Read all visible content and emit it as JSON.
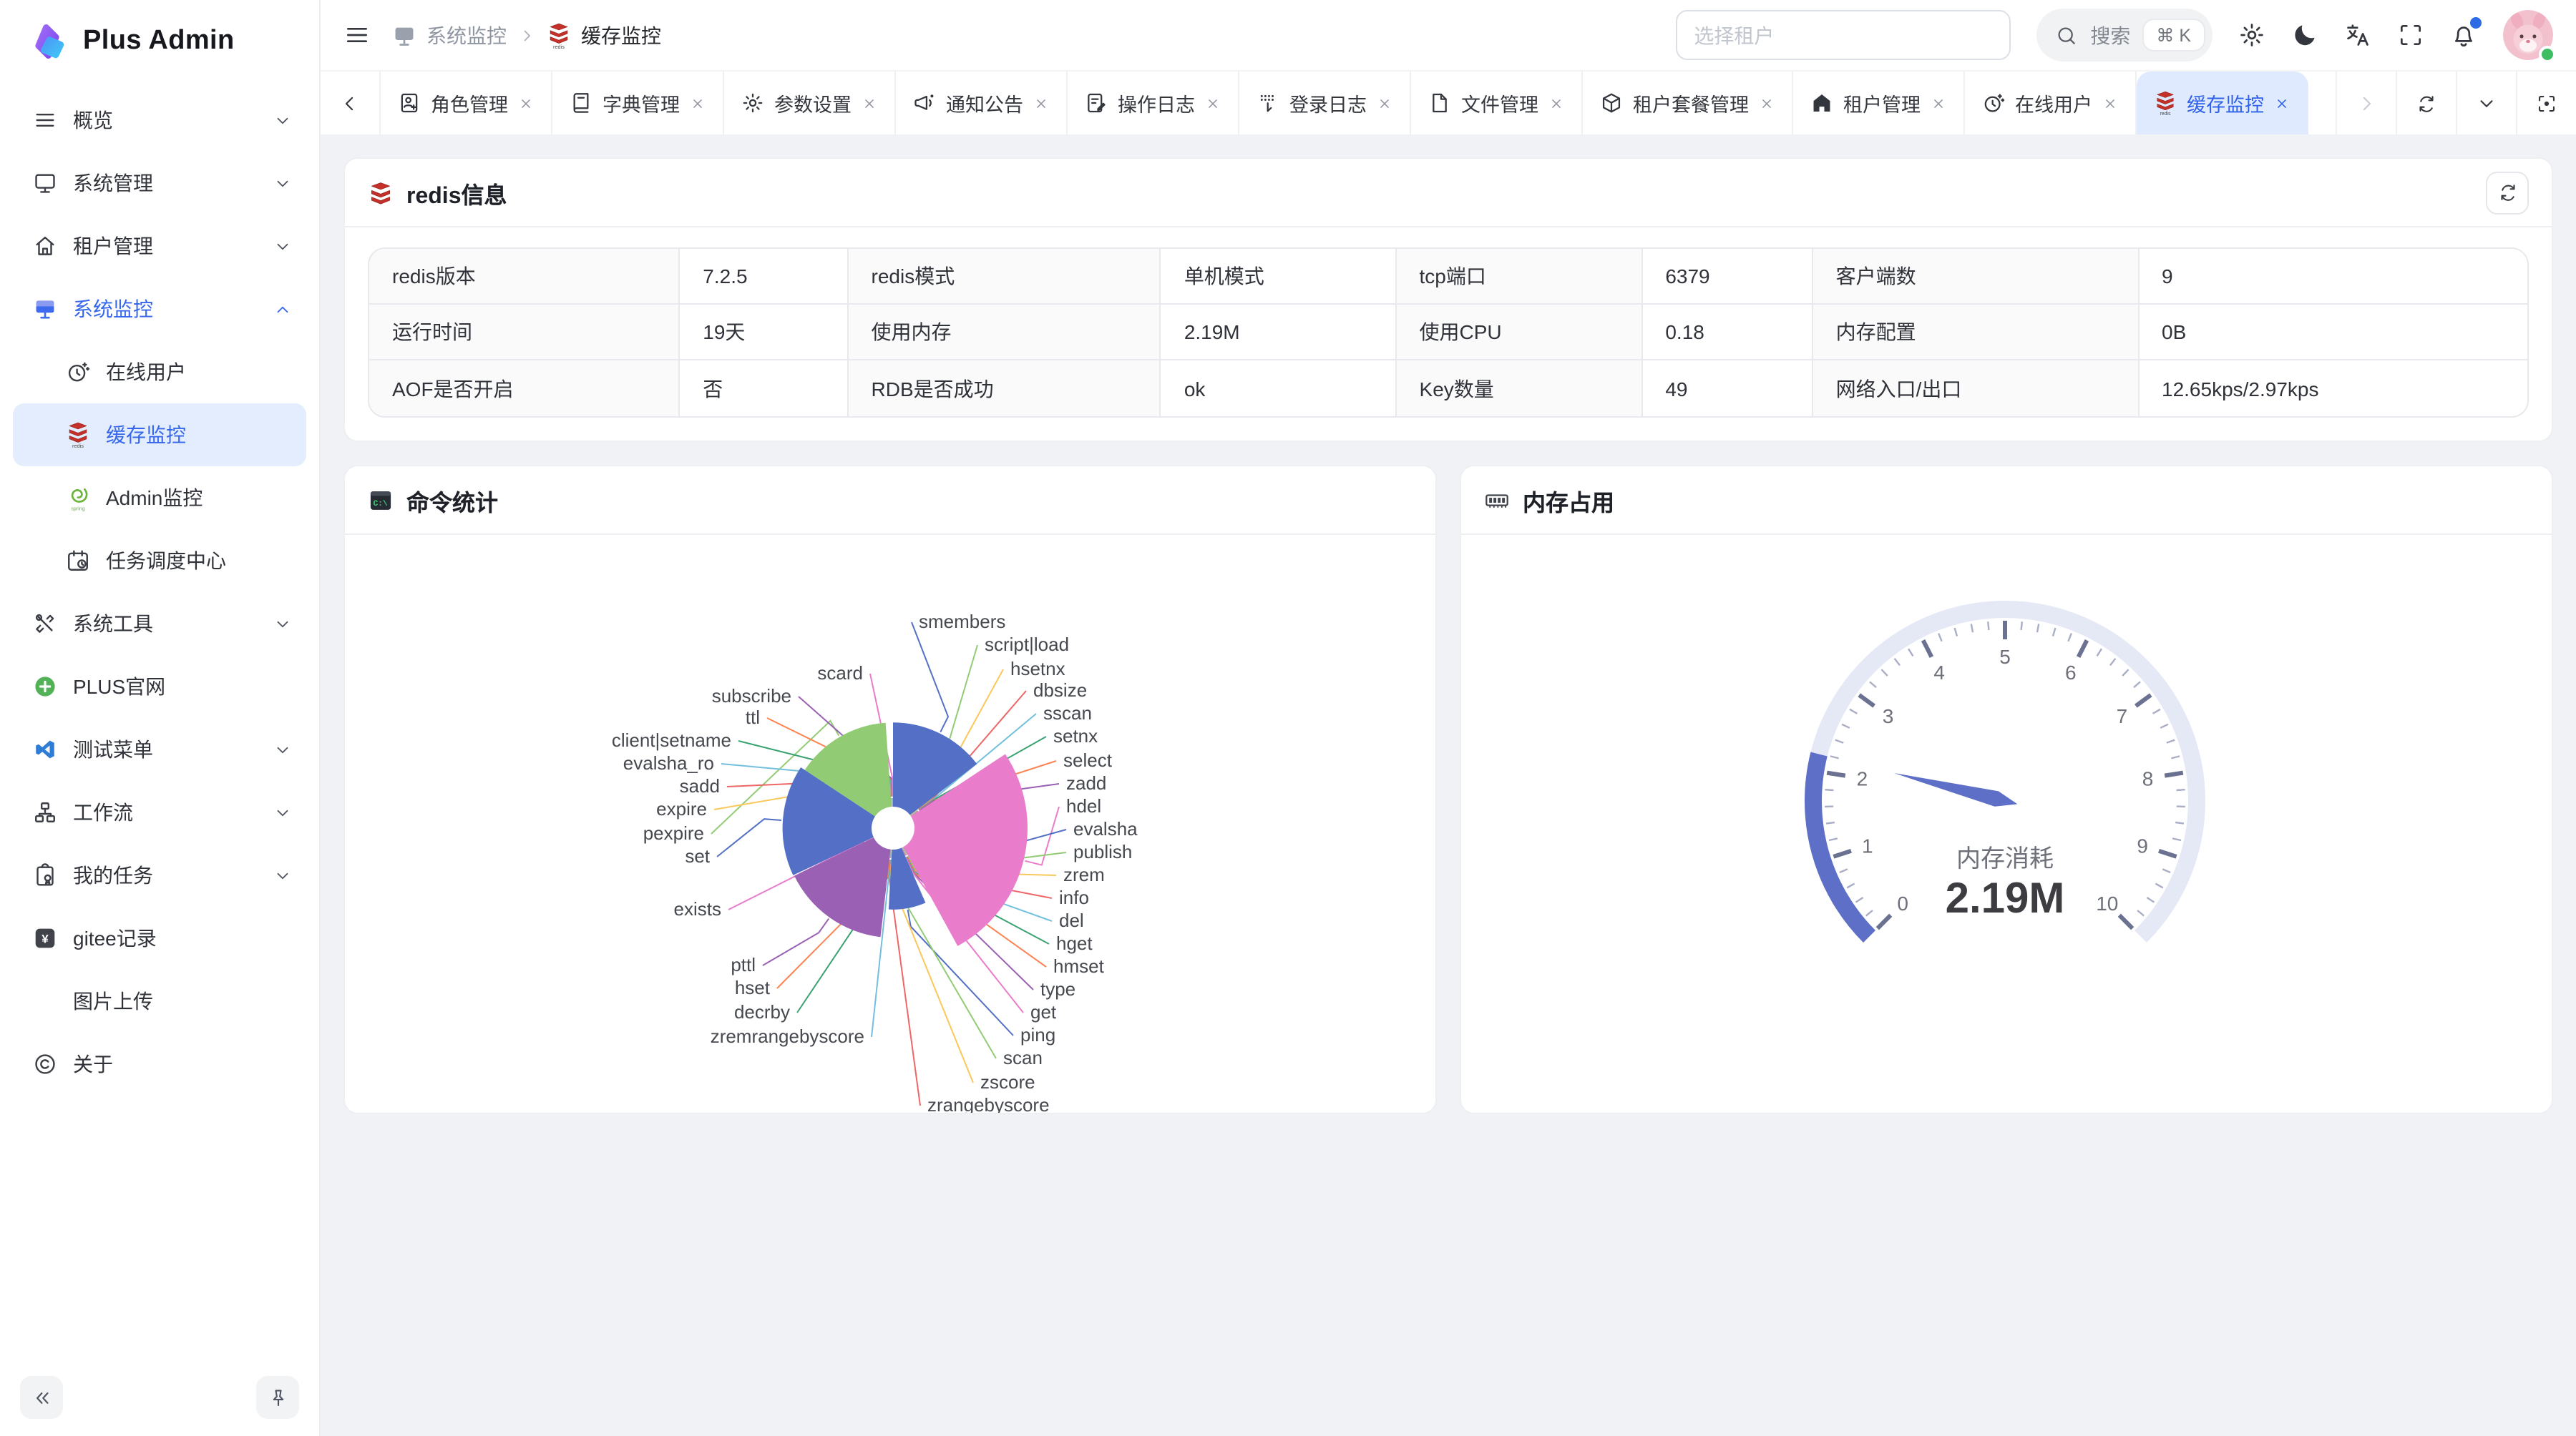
{
  "app": {
    "name": "Plus Admin"
  },
  "colors": {
    "primary": "#3566EB",
    "sidebar_active_bg": "#E3EDFD",
    "active_tab_bg": "#E0EAFE",
    "content_bg": "#F0F2F5",
    "redis_red": "#C6302B",
    "notification_dot": "#2B6BE4",
    "online_status": "#3DBE62"
  },
  "sidebar": {
    "items": [
      {
        "key": "overview",
        "label": "概览",
        "icon": "menu-lines",
        "chevron": "down"
      },
      {
        "key": "system-mgmt",
        "label": "系统管理",
        "icon": "monitor",
        "chevron": "down"
      },
      {
        "key": "tenant-mgmt",
        "label": "租户管理",
        "icon": "home",
        "chevron": "down"
      },
      {
        "key": "system-monitor",
        "label": "系统监控",
        "icon": "monitor-active",
        "chevron": "up",
        "active": true
      },
      {
        "key": "online-users",
        "label": "在线用户",
        "icon": "clock",
        "child": true
      },
      {
        "key": "cache-monitor",
        "label": "缓存监控",
        "icon": "redis",
        "child": true,
        "selected": true
      },
      {
        "key": "admin-monitor",
        "label": "Admin监控",
        "icon": "spring",
        "child": true
      },
      {
        "key": "task-scheduler",
        "label": "任务调度中心",
        "icon": "calendar",
        "child": true
      },
      {
        "key": "system-tools",
        "label": "系统工具",
        "icon": "tools",
        "chevron": "down"
      },
      {
        "key": "plus-site",
        "label": "PLUS官网",
        "icon": "plus-circle"
      },
      {
        "key": "test-menu",
        "label": "测试菜单",
        "icon": "vscode",
        "chevron": "down"
      },
      {
        "key": "workflow",
        "label": "工作流",
        "icon": "workflow",
        "chevron": "down"
      },
      {
        "key": "my-tasks",
        "label": "我的任务",
        "icon": "clipboard",
        "chevron": "down"
      },
      {
        "key": "gitee-log",
        "label": "gitee记录",
        "icon": "gitee"
      },
      {
        "key": "image-upload",
        "label": "图片上传",
        "icon": "none"
      },
      {
        "key": "about",
        "label": "关于",
        "icon": "copyright"
      }
    ]
  },
  "topbar": {
    "breadcrumb": {
      "root": {
        "label": "系统监控",
        "icon": "monitor-gray"
      },
      "current": {
        "label": "缓存监控",
        "icon": "redis"
      }
    },
    "tenant_select": {
      "placeholder": "选择租户"
    },
    "search": {
      "label": "搜索",
      "shortcut": "⌘ K"
    },
    "action_icons": {
      "settings": "gear",
      "theme": "moon",
      "locale": "translate",
      "fullscreen": "fullscreen",
      "notifications": "bell"
    }
  },
  "tabbar": {
    "tabs": [
      {
        "key": "role-mgmt",
        "label": "角色管理",
        "icon": "role"
      },
      {
        "key": "dict-mgmt",
        "label": "字典管理",
        "icon": "book"
      },
      {
        "key": "param-settings",
        "label": "参数设置",
        "icon": "gear"
      },
      {
        "key": "notice",
        "label": "通知公告",
        "icon": "megaphone"
      },
      {
        "key": "op-log",
        "label": "操作日志",
        "icon": "doc"
      },
      {
        "key": "login-log",
        "label": "登录日志",
        "icon": "login-log"
      },
      {
        "key": "file-mgmt",
        "label": "文件管理",
        "icon": "file"
      },
      {
        "key": "tenant-package-mgmt",
        "label": "租户套餐管理",
        "icon": "box"
      },
      {
        "key": "tenant-mgmt",
        "label": "租户管理",
        "icon": "building"
      },
      {
        "key": "online-users",
        "label": "在线用户",
        "icon": "clock"
      },
      {
        "key": "cache-monitor",
        "label": "缓存监控",
        "icon": "redis",
        "active": true
      }
    ]
  },
  "redis_info": {
    "title": "redis信息",
    "icon": "redis-plain",
    "rows": [
      [
        {
          "label": "redis版本",
          "value": "7.2.5"
        },
        {
          "label": "redis模式",
          "value": "单机模式"
        },
        {
          "label": "tcp端口",
          "value": "6379"
        },
        {
          "label": "客户端数",
          "value": "9"
        }
      ],
      [
        {
          "label": "运行时间",
          "value": "19天"
        },
        {
          "label": "使用内存",
          "value": "2.19M"
        },
        {
          "label": "使用CPU",
          "value": "0.18"
        },
        {
          "label": "内存配置",
          "value": "0B"
        }
      ],
      [
        {
          "label": "AOF是否开启",
          "value": "否"
        },
        {
          "label": "RDB是否成功",
          "value": "ok"
        },
        {
          "label": "Key数量",
          "value": "49"
        },
        {
          "label": "网络入口/出口",
          "value": "12.65kps/2.97kps"
        }
      ]
    ]
  },
  "chart_data": [
    {
      "id": "command-usage",
      "type": "pie",
      "variant": "rose",
      "title": "命令统计",
      "icon": "terminal",
      "legend_position": "none",
      "note": "values are estimated percentages read from slice angles",
      "slices": [
        {
          "name": "smembers",
          "value": 14.6,
          "color": "#5470C6"
        },
        {
          "name": "script|load",
          "value": 0.16,
          "color": "#91CC75"
        },
        {
          "name": "hsetnx",
          "value": 0.16,
          "color": "#FAC858"
        },
        {
          "name": "dbsize",
          "value": 0.16,
          "color": "#EE6666"
        },
        {
          "name": "sscan",
          "value": 0.16,
          "color": "#73C0DE"
        },
        {
          "name": "setnx",
          "value": 0.16,
          "color": "#3BA272"
        },
        {
          "name": "select",
          "value": 0.16,
          "color": "#FC8452"
        },
        {
          "name": "zadd",
          "value": 0.16,
          "color": "#9A60B4"
        },
        {
          "name": "hdel",
          "value": 26.3,
          "color": "#EA7CCC"
        },
        {
          "name": "evalsha",
          "value": 0.16,
          "color": "#5470C6"
        },
        {
          "name": "publish",
          "value": 0.16,
          "color": "#91CC75"
        },
        {
          "name": "zrem",
          "value": 0.16,
          "color": "#FAC858"
        },
        {
          "name": "info",
          "value": 0.16,
          "color": "#EE6666"
        },
        {
          "name": "del",
          "value": 0.16,
          "color": "#73C0DE"
        },
        {
          "name": "hget",
          "value": 0.16,
          "color": "#3BA272"
        },
        {
          "name": "hmset",
          "value": 0.16,
          "color": "#FC8452"
        },
        {
          "name": "type",
          "value": 0.16,
          "color": "#9A60B4"
        },
        {
          "name": "get",
          "value": 0.16,
          "color": "#EA7CCC"
        },
        {
          "name": "ping",
          "value": 7.4,
          "color": "#5470C6"
        },
        {
          "name": "scan",
          "value": 0.16,
          "color": "#91CC75"
        },
        {
          "name": "zscore",
          "value": 0.16,
          "color": "#FAC858"
        },
        {
          "name": "zrangebyscore",
          "value": 0.16,
          "color": "#EE6666"
        },
        {
          "name": "zremrangebyscore",
          "value": 0.16,
          "color": "#73C0DE"
        },
        {
          "name": "decrby",
          "value": 0.16,
          "color": "#3BA272"
        },
        {
          "name": "hset",
          "value": 0.16,
          "color": "#FC8452"
        },
        {
          "name": "pttl",
          "value": 16.0,
          "color": "#9A60B4"
        },
        {
          "name": "exists",
          "value": 0.16,
          "color": "#EA7CCC"
        },
        {
          "name": "set",
          "value": 16.3,
          "color": "#5470C6"
        },
        {
          "name": "pexpire",
          "value": 14.6,
          "color": "#91CC75"
        },
        {
          "name": "expire",
          "value": 0.16,
          "color": "#FAC858"
        },
        {
          "name": "sadd",
          "value": 0.16,
          "color": "#EE6666"
        },
        {
          "name": "evalsha_ro",
          "value": 0.16,
          "color": "#73C0DE"
        },
        {
          "name": "client|setname",
          "value": 0.16,
          "color": "#3BA272"
        },
        {
          "name": "ttl",
          "value": 0.16,
          "color": "#FC8452"
        },
        {
          "name": "subscribe",
          "value": 0.16,
          "color": "#9A60B4"
        },
        {
          "name": "scard",
          "value": 0.16,
          "color": "#EA7CCC"
        }
      ]
    },
    {
      "id": "memory-usage",
      "type": "gauge",
      "title": "内存占用",
      "icon": "ram",
      "label": "内存消耗",
      "value": 2.19,
      "display": "2.19M",
      "min": 0,
      "max": 10,
      "tick_labels": [
        "0",
        "1",
        "2",
        "3",
        "4",
        "5",
        "6",
        "7",
        "8",
        "9",
        "10"
      ],
      "start_angle": 225,
      "end_angle": -45,
      "track_color": "#E5E8F5",
      "progress_color": "#5E6FC7"
    }
  ]
}
